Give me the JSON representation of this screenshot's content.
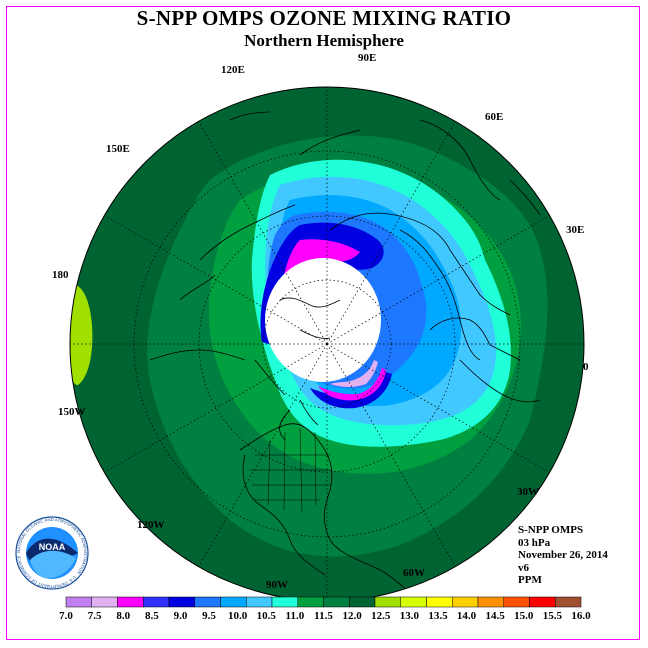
{
  "title": "S-NPP OMPS OZONE MIXING RATIO",
  "subtitle": "Northern Hemisphere",
  "longitude_labels": {
    "lon_90e": "90E",
    "lon_60e": "60E",
    "lon_30e": "30E",
    "lon_0": "0",
    "lon_30w": "30W",
    "lon_60w": "60W",
    "lon_90w": "90W",
    "lon_120w": "120W",
    "lon_150w": "150W",
    "lon_180": "180",
    "lon_150e": "150E",
    "lon_120e": "120E"
  },
  "info": {
    "instrument": "S-NPP OMPS",
    "level": "03 hPa",
    "date": "November 26, 2014",
    "version": "v6",
    "units": "PPM"
  },
  "logo": {
    "text": "NOAA",
    "ring_text": "NATIONAL OCEANIC AND ATMOSPHERIC ADMINISTRATION · U.S. DEPARTMENT OF COMMERCE"
  },
  "colorbar": {
    "labels": [
      "7.0",
      "7.5",
      "8.0",
      "8.5",
      "9.0",
      "9.5",
      "10.0",
      "10.5",
      "11.0",
      "11.5",
      "12.0",
      "12.5",
      "13.0",
      "13.5",
      "14.0",
      "14.5",
      "15.0",
      "15.5",
      "16.0"
    ],
    "colors": [
      "#c080f0",
      "#e0b0f0",
      "#ff00ff",
      "#3030ff",
      "#0000e0",
      "#1e78ff",
      "#00a8ff",
      "#40c8ff",
      "#20ffd8",
      "#00a040",
      "#008040",
      "#006432",
      "#a0e000",
      "#d8ff00",
      "#ffff00",
      "#ffd000",
      "#ff9000",
      "#ff5000",
      "#ff0000",
      "#a05030"
    ]
  },
  "colors": {
    "background_band": "#006432",
    "band_11_5": "#008040",
    "band_11": "#00a040",
    "band_10_5": "#20ffd8",
    "band_10": "#40c8ff",
    "band_9_5": "#00a8ff",
    "band_9": "#1e78ff",
    "band_8_5": "#0000e0",
    "band_8": "#ff00ff",
    "band_7_5": "#e0b0f0",
    "band_12_5": "#a0e000",
    "no_data": "#ffffff"
  }
}
